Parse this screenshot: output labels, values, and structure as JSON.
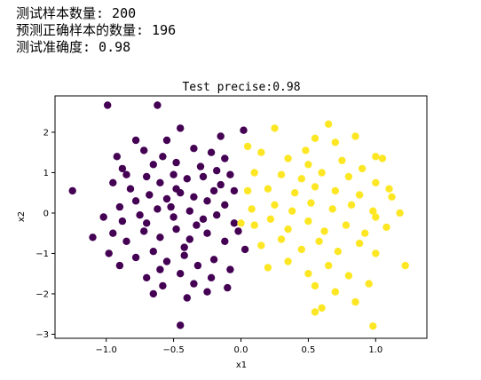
{
  "console": {
    "lines": [
      "测试样本数量: 200",
      "预测正确样本的数量: 196",
      "测试准确度: 0.98"
    ]
  },
  "chart_data": {
    "type": "scatter",
    "title": "Test precise:0.98",
    "xlabel": "x1",
    "ylabel": "x2",
    "xlim": [
      -1.38,
      1.38
    ],
    "ylim": [
      -3.1,
      2.9
    ],
    "xticks": [
      -1.0,
      -0.5,
      0.0,
      0.5,
      1.0
    ],
    "xtick_labels": [
      "−1.0",
      "−0.5",
      "0.0",
      "0.5",
      "1.0"
    ],
    "yticks": [
      -3,
      -2,
      -1,
      0,
      1,
      2
    ],
    "ytick_labels": [
      "−3",
      "−2",
      "−1",
      "0",
      "1",
      "2"
    ],
    "grid": false,
    "colors": {
      "class0": "#440154",
      "class1": "#fde725"
    },
    "series": [
      {
        "values": [
          [
            -1.25,
            0.55
          ],
          [
            -0.99,
            2.67
          ],
          [
            -0.62,
            2.67
          ],
          [
            -0.45,
            -2.78
          ],
          [
            -0.55,
            1.8
          ],
          [
            -0.78,
            1.8
          ],
          [
            -0.92,
            1.4
          ],
          [
            -0.88,
            1.1
          ],
          [
            -0.72,
            1.55
          ],
          [
            -0.35,
            1.6
          ],
          [
            -0.22,
            1.5
          ],
          [
            -0.12,
            1.35
          ],
          [
            -0.58,
            1.4
          ],
          [
            -0.48,
            1.25
          ],
          [
            -0.65,
            1.2
          ],
          [
            -0.3,
            1.15
          ],
          [
            -0.18,
            1.05
          ],
          [
            -0.08,
            0.95
          ],
          [
            -0.95,
            0.75
          ],
          [
            -0.82,
            0.6
          ],
          [
            -0.7,
            0.9
          ],
          [
            -0.6,
            0.75
          ],
          [
            -0.5,
            0.95
          ],
          [
            -0.4,
            0.85
          ],
          [
            -0.28,
            0.9
          ],
          [
            -0.15,
            0.7
          ],
          [
            -0.05,
            0.55
          ],
          [
            -0.9,
            0.15
          ],
          [
            -0.78,
            0.3
          ],
          [
            -0.68,
            0.45
          ],
          [
            -0.55,
            0.35
          ],
          [
            -0.45,
            0.5
          ],
          [
            -0.35,
            0.4
          ],
          [
            -0.25,
            0.3
          ],
          [
            -0.12,
            0.2
          ],
          [
            -1.02,
            -0.1
          ],
          [
            -0.88,
            -0.2
          ],
          [
            -0.75,
            -0.05
          ],
          [
            -0.62,
            0.1
          ],
          [
            -0.5,
            -0.1
          ],
          [
            -0.38,
            0.05
          ],
          [
            -0.28,
            -0.15
          ],
          [
            -0.18,
            -0.05
          ],
          [
            -0.05,
            -0.25
          ],
          [
            -1.1,
            -0.6
          ],
          [
            -0.95,
            -0.5
          ],
          [
            -0.85,
            -0.7
          ],
          [
            -0.72,
            -0.45
          ],
          [
            -0.6,
            -0.6
          ],
          [
            -0.48,
            -0.4
          ],
          [
            -0.38,
            -0.65
          ],
          [
            -0.25,
            -0.5
          ],
          [
            -0.12,
            -0.7
          ],
          [
            -0.02,
            -0.45
          ],
          [
            -0.98,
            -1.0
          ],
          [
            -0.9,
            -1.3
          ],
          [
            -0.78,
            -1.1
          ],
          [
            -0.65,
            -0.95
          ],
          [
            -0.55,
            -1.2
          ],
          [
            -0.42,
            -1.05
          ],
          [
            -0.32,
            -1.3
          ],
          [
            -0.2,
            -1.15
          ],
          [
            -0.08,
            -1.4
          ],
          [
            -0.7,
            -1.6
          ],
          [
            -0.58,
            -1.8
          ],
          [
            -0.45,
            -1.5
          ],
          [
            -0.35,
            -1.75
          ],
          [
            -0.22,
            -1.6
          ],
          [
            -0.1,
            -1.85
          ],
          [
            -0.65,
            -2.0
          ],
          [
            -0.4,
            -2.1
          ],
          [
            -0.25,
            -1.95
          ],
          [
            0.02,
            2.05
          ],
          [
            0.03,
            -0.9
          ],
          [
            -0.45,
            2.1
          ],
          [
            -0.85,
            0.95
          ],
          [
            -0.52,
            0.15
          ],
          [
            -0.33,
            -0.3
          ],
          [
            -0.42,
            -0.85
          ],
          [
            -0.6,
            -1.4
          ],
          [
            -0.15,
            1.9
          ],
          [
            -0.7,
            -0.25
          ],
          [
            -0.2,
            0.55
          ],
          [
            -0.48,
            0.6
          ]
        ]
      },
      {
        "values": [
          [
            0.05,
            1.65
          ],
          [
            0.25,
            2.1
          ],
          [
            0.55,
            1.85
          ],
          [
            0.65,
            2.2
          ],
          [
            0.7,
            1.75
          ],
          [
            0.85,
            1.9
          ],
          [
            1.05,
            1.35
          ],
          [
            1.0,
            1.4
          ],
          [
            0.15,
            1.5
          ],
          [
            0.35,
            1.35
          ],
          [
            0.5,
            1.2
          ],
          [
            0.75,
            1.3
          ],
          [
            0.9,
            1.1
          ],
          [
            0.1,
            1.0
          ],
          [
            0.3,
            0.95
          ],
          [
            0.45,
            0.85
          ],
          [
            0.6,
            1.0
          ],
          [
            0.8,
            0.9
          ],
          [
            1.0,
            0.75
          ],
          [
            1.1,
            0.6
          ],
          [
            0.05,
            0.55
          ],
          [
            0.2,
            0.6
          ],
          [
            0.4,
            0.5
          ],
          [
            0.55,
            0.65
          ],
          [
            0.7,
            0.55
          ],
          [
            0.88,
            0.45
          ],
          [
            1.12,
            0.4
          ],
          [
            1.18,
            0.0
          ],
          [
            0.08,
            0.1
          ],
          [
            0.25,
            0.2
          ],
          [
            0.38,
            0.05
          ],
          [
            0.52,
            0.25
          ],
          [
            0.68,
            0.1
          ],
          [
            0.82,
            0.2
          ],
          [
            0.98,
            0.05
          ],
          [
            0.1,
            -0.3
          ],
          [
            0.22,
            -0.15
          ],
          [
            0.35,
            -0.4
          ],
          [
            0.5,
            -0.2
          ],
          [
            0.62,
            -0.45
          ],
          [
            0.78,
            -0.3
          ],
          [
            0.92,
            -0.5
          ],
          [
            1.08,
            -0.35
          ],
          [
            0.15,
            -0.8
          ],
          [
            0.3,
            -0.65
          ],
          [
            0.45,
            -0.9
          ],
          [
            0.58,
            -0.7
          ],
          [
            0.72,
            -0.95
          ],
          [
            0.88,
            -0.75
          ],
          [
            1.0,
            -1.0
          ],
          [
            0.2,
            -1.35
          ],
          [
            0.35,
            -1.2
          ],
          [
            0.5,
            -1.5
          ],
          [
            0.65,
            -1.3
          ],
          [
            0.8,
            -1.55
          ],
          [
            0.55,
            -1.8
          ],
          [
            0.7,
            -1.95
          ],
          [
            0.95,
            -1.75
          ],
          [
            1.22,
            -1.3
          ],
          [
            0.85,
            -2.2
          ],
          [
            0.6,
            -2.35
          ],
          [
            0.55,
            -2.45
          ],
          [
            0.98,
            -2.8
          ],
          [
            1.0,
            -0.1
          ],
          [
            0.0,
            -0.25
          ],
          [
            0.48,
            1.55
          ]
        ]
      }
    ]
  }
}
